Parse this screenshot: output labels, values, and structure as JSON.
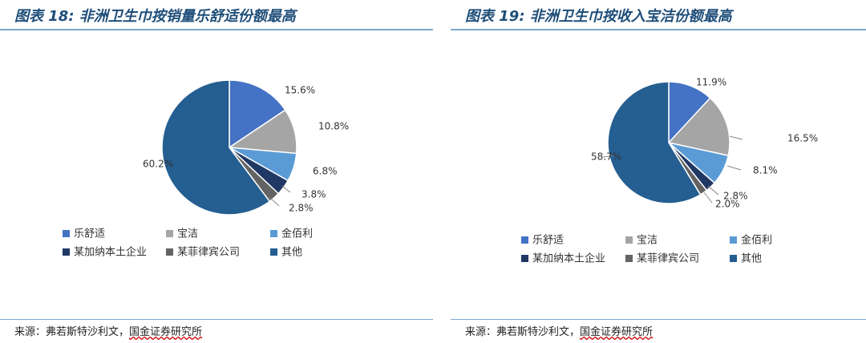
{
  "charts": [
    {
      "title": "图表 18: 非洲卫生巾按销量乐舒适份额最高",
      "source_prefix": "来源：弗若斯特沙利文，",
      "source_org": "国金证券研究所"
    },
    {
      "title": "图表 19: 非洲卫生巾按收入宝洁份额最高",
      "source_prefix": "来源：弗若斯特沙利文，",
      "source_org": "国金证券研究所"
    }
  ],
  "chart_data": [
    {
      "type": "pie",
      "title": "图表 18: 非洲卫生巾按销量乐舒适份额最高",
      "categories": [
        "乐舒适",
        "宝洁",
        "金佰利",
        "某加纳本土企业",
        "某菲律宾公司",
        "其他"
      ],
      "values": [
        15.6,
        10.8,
        6.8,
        3.8,
        2.8,
        60.2
      ],
      "labels": [
        "15.6%",
        "10.8%",
        "6.8%",
        "3.8%",
        "2.8%",
        "60.2%"
      ],
      "colors": [
        "#4472c4",
        "#a5a5a5",
        "#5b9bd5",
        "#203864",
        "#636363",
        "#255e91"
      ],
      "legend": "bottom"
    },
    {
      "type": "pie",
      "title": "图表 19: 非洲卫生巾按收入宝洁份额最高",
      "categories": [
        "乐舒适",
        "宝洁",
        "金佰利",
        "某加纳本土企业",
        "某菲律宾公司",
        "其他"
      ],
      "values": [
        11.9,
        16.5,
        8.1,
        2.8,
        2.0,
        58.7
      ],
      "labels": [
        "11.9%",
        "16.5%",
        "8.1%",
        "2.8%",
        "2.0%",
        "58.7%"
      ],
      "colors": [
        "#4472c4",
        "#a5a5a5",
        "#5b9bd5",
        "#203864",
        "#636363",
        "#255e91"
      ],
      "legend": "bottom"
    }
  ]
}
